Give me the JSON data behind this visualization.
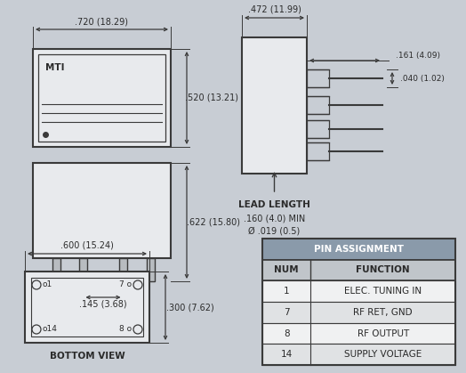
{
  "background_color": "#c8cdd4",
  "line_color": "#3a3a3a",
  "text_color": "#2a2a2a",
  "fig_width": 5.24,
  "fig_height": 4.19,
  "dpi": 100,
  "pin_table": {
    "title": "PIN ASSIGNMENT",
    "col1": "NUM",
    "col2": "FUNCTION",
    "rows": [
      [
        "1",
        "ELEC. TUNING IN"
      ],
      [
        "7",
        "RF RET, GND"
      ],
      [
        "8",
        "RF OUTPUT"
      ],
      [
        "14",
        "SUPPLY VOLTAGE"
      ]
    ]
  }
}
